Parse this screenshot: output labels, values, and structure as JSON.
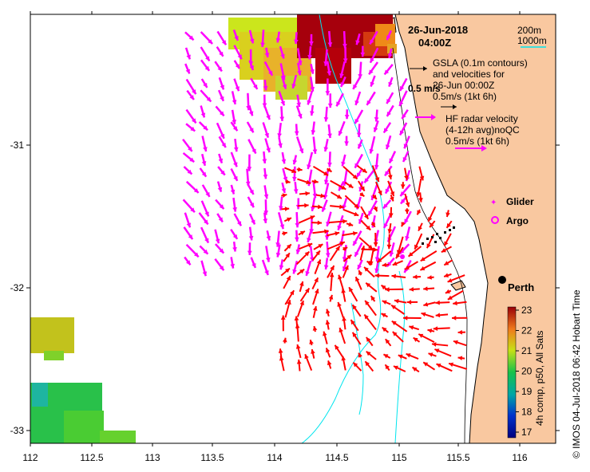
{
  "date_title": "26-Jun-2018",
  "time_title": "04:00Z",
  "depth_legend": [
    "200m",
    "1000m"
  ],
  "gsla_legend": {
    "line1": "GSLA (0.1m contours)",
    "line2": "and velocities for",
    "line3": "26-Jun 00:00Z",
    "scale": "0.5m/s (1kt 6h)"
  },
  "scale_bar_label": "0.5 m/s",
  "hf_legend": {
    "line1": "HF radar velocity",
    "line2": "(4-12h avg)noQC",
    "scale": "0.5m/s (1kt 6h)"
  },
  "symbols": {
    "glider": "Glider",
    "argo": "Argo"
  },
  "city_label": "Perth",
  "x_ticks": [
    "112",
    "112.5",
    "113",
    "113.5",
    "114",
    "114.5",
    "115",
    "115.5",
    "116"
  ],
  "y_ticks": [
    "-31",
    "-32",
    "-33"
  ],
  "colorbar": {
    "ticks": [
      "23",
      "22",
      "21",
      "20",
      "19",
      "18",
      "17"
    ],
    "title": "4h comp, p50, All Sats",
    "range": [
      17,
      23
    ]
  },
  "credit": "© IMOS 04-Jul-2018 06:42 Hobart Time",
  "colors": {
    "land": "#f9c8a0",
    "hf_arrow": "#ff00ff",
    "radar_arrow": "#ff0000",
    "contour_200": "#000000",
    "contour_1000": "#00e5ee"
  }
}
